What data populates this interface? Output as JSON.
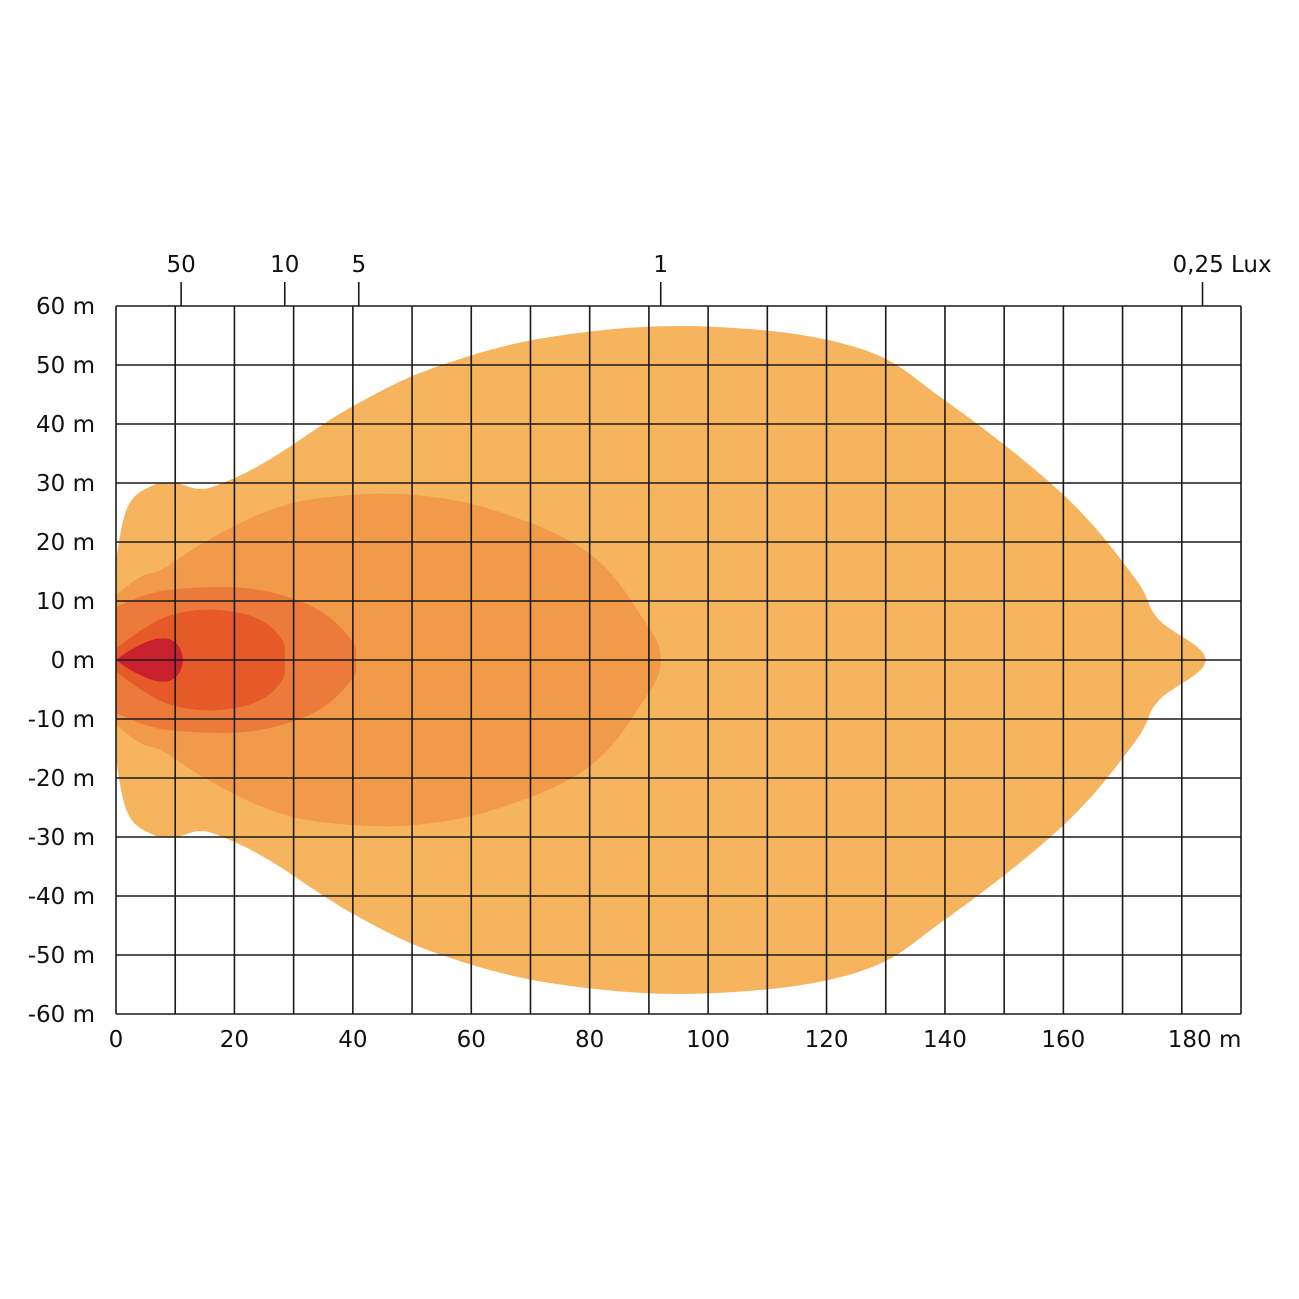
{
  "chart_data": {
    "type": "area",
    "title": "",
    "xlabel": "",
    "ylabel": "",
    "xlim": [
      0,
      190
    ],
    "ylim": [
      -60,
      60
    ],
    "grid": true,
    "x_tick_labels": [
      {
        "value": 0,
        "label": "0"
      },
      {
        "value": 20,
        "label": "20"
      },
      {
        "value": 40,
        "label": "40"
      },
      {
        "value": 60,
        "label": "60"
      },
      {
        "value": 80,
        "label": "80"
      },
      {
        "value": 100,
        "label": "100"
      },
      {
        "value": 120,
        "label": "120"
      },
      {
        "value": 140,
        "label": "140"
      },
      {
        "value": 160,
        "label": "160"
      },
      {
        "value": 180,
        "label": "180 m"
      }
    ],
    "y_tick_labels": [
      {
        "value": 60,
        "label": "60 m"
      },
      {
        "value": 50,
        "label": "50 m"
      },
      {
        "value": 40,
        "label": "40 m"
      },
      {
        "value": 30,
        "label": "30 m"
      },
      {
        "value": 20,
        "label": "20 m"
      },
      {
        "value": 10,
        "label": "10 m"
      },
      {
        "value": 0,
        "label": "0 m"
      },
      {
        "value": -10,
        "label": "-10 m"
      },
      {
        "value": -20,
        "label": "-20 m"
      },
      {
        "value": -30,
        "label": "-30 m"
      },
      {
        "value": -40,
        "label": "-40 m"
      },
      {
        "value": -50,
        "label": "-50 m"
      },
      {
        "value": -60,
        "label": "-60 m"
      }
    ],
    "lux_markers": [
      {
        "x": 11,
        "label": "50"
      },
      {
        "x": 28.5,
        "label": "10"
      },
      {
        "x": 41,
        "label": "5"
      },
      {
        "x": 92,
        "label": "1"
      },
      {
        "x": 183.5,
        "label": "0,25 Lux"
      }
    ],
    "series": [
      {
        "lux": 0.25,
        "color": "#f6b45f",
        "points": [
          [
            0,
            17
          ],
          [
            2,
            26
          ],
          [
            6,
            29.5
          ],
          [
            10,
            30
          ],
          [
            14,
            29
          ],
          [
            18,
            30
          ],
          [
            26,
            34
          ],
          [
            40,
            43
          ],
          [
            55,
            50
          ],
          [
            75,
            55
          ],
          [
            100,
            56.5
          ],
          [
            125,
            53
          ],
          [
            140,
            44
          ],
          [
            160,
            28
          ],
          [
            172,
            14
          ],
          [
            176,
            7
          ],
          [
            184,
            0
          ],
          [
            176,
            -7
          ],
          [
            172,
            -14
          ],
          [
            160,
            -28
          ],
          [
            140,
            -44
          ],
          [
            125,
            -53
          ],
          [
            100,
            -56.5
          ],
          [
            75,
            -55
          ],
          [
            55,
            -50
          ],
          [
            40,
            -43
          ],
          [
            26,
            -34
          ],
          [
            18,
            -30
          ],
          [
            14,
            -29
          ],
          [
            10,
            -30
          ],
          [
            6,
            -29.5
          ],
          [
            2,
            -26
          ],
          [
            0,
            -17
          ]
        ]
      },
      {
        "lux": 1,
        "color": "#f09a4a",
        "points": [
          [
            0,
            11
          ],
          [
            4,
            14
          ],
          [
            8,
            15.5
          ],
          [
            15,
            20
          ],
          [
            25,
            25
          ],
          [
            35,
            27.5
          ],
          [
            50,
            28
          ],
          [
            65,
            25
          ],
          [
            80,
            18
          ],
          [
            89,
            7
          ],
          [
            92,
            0
          ],
          [
            89,
            -7
          ],
          [
            80,
            -18
          ],
          [
            65,
            -25
          ],
          [
            50,
            -28
          ],
          [
            35,
            -27.5
          ],
          [
            25,
            -25
          ],
          [
            15,
            -20
          ],
          [
            8,
            -15.5
          ],
          [
            4,
            -14
          ],
          [
            0,
            -11
          ]
        ]
      },
      {
        "lux": 5,
        "color": "#ec7b3b",
        "points": [
          [
            0,
            9
          ],
          [
            5,
            11
          ],
          [
            10,
            12
          ],
          [
            20,
            12.3
          ],
          [
            28,
            11
          ],
          [
            35,
            8
          ],
          [
            40,
            3
          ],
          [
            40.5,
            0
          ],
          [
            40,
            -3
          ],
          [
            35,
            -8
          ],
          [
            28,
            -11
          ],
          [
            20,
            -12.3
          ],
          [
            10,
            -12
          ],
          [
            5,
            -11
          ],
          [
            0,
            -9
          ]
        ]
      },
      {
        "lux": 10,
        "color": "#e65a2a",
        "points": [
          [
            0,
            2
          ],
          [
            5,
            5.5
          ],
          [
            10,
            7.8
          ],
          [
            17,
            8.5
          ],
          [
            24,
            7
          ],
          [
            28,
            3.5
          ],
          [
            28.5,
            0
          ],
          [
            28,
            -3.5
          ],
          [
            24,
            -7
          ],
          [
            17,
            -8.5
          ],
          [
            10,
            -7.8
          ],
          [
            5,
            -5.5
          ],
          [
            0,
            -2
          ]
        ]
      },
      {
        "lux": 50,
        "color": "#c8202c",
        "points": [
          [
            0,
            0
          ],
          [
            3,
            2
          ],
          [
            7,
            3.6
          ],
          [
            10,
            3
          ],
          [
            11.3,
            0
          ],
          [
            10,
            -3
          ],
          [
            7,
            -3.6
          ],
          [
            3,
            -2
          ],
          [
            0,
            0
          ]
        ]
      }
    ]
  }
}
